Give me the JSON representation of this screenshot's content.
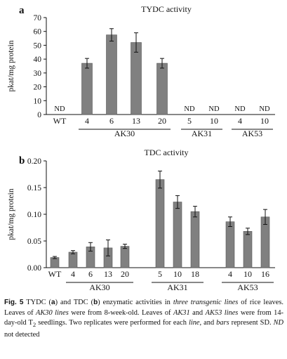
{
  "chart_data": [
    {
      "panel_label": "a",
      "type": "bar",
      "title": "TYDC activity",
      "ylabel": "pkat/mg protein",
      "ylim": [
        0,
        70
      ],
      "yticks": [
        "0",
        "10",
        "20",
        "30",
        "40",
        "50",
        "60",
        "70"
      ],
      "categories": [
        "WT",
        "4",
        "6",
        "13",
        "20",
        "5",
        "10",
        "4",
        "10"
      ],
      "values": [
        0,
        37,
        57.5,
        52,
        37,
        0,
        0,
        0,
        0
      ],
      "errors": [
        0,
        3.5,
        4.5,
        7,
        3.5,
        0,
        0,
        0,
        0
      ],
      "bar_labels": [
        "ND",
        "",
        "",
        "",
        "",
        "ND",
        "ND",
        "ND",
        "ND"
      ],
      "groups": [
        {
          "label": "AK30",
          "start": 1,
          "end": 4
        },
        {
          "label": "AK31",
          "start": 5,
          "end": 6
        },
        {
          "label": "AK53",
          "start": 7,
          "end": 8
        }
      ]
    },
    {
      "panel_label": "b",
      "type": "bar",
      "title": "TDC activity",
      "ylabel": "pkat/mg protein",
      "ylim": [
        0,
        0.2
      ],
      "yticks": [
        "0.00",
        "0.05",
        "0.10",
        "0.15",
        "0.20"
      ],
      "categories": [
        "WT",
        "4",
        "6",
        "13",
        "20",
        "5",
        "10",
        "18",
        "4",
        "10",
        "16"
      ],
      "values": [
        0.019,
        0.029,
        0.039,
        0.037,
        0.04,
        0.165,
        0.123,
        0.105,
        0.086,
        0.068,
        0.095
      ],
      "errors": [
        0.002,
        0.003,
        0.008,
        0.015,
        0.004,
        0.016,
        0.012,
        0.01,
        0.009,
        0.006,
        0.014
      ],
      "bar_labels": [
        "",
        "",
        "",
        "",
        "",
        "",
        "",
        "",
        "",
        "",
        ""
      ],
      "groups": [
        {
          "label": "AK30",
          "start": 1,
          "end": 4
        },
        {
          "label": "AK31",
          "start": 5,
          "end": 7
        },
        {
          "label": "AK53",
          "start": 8,
          "end": 10
        }
      ]
    }
  ],
  "caption": {
    "fig_label": "Fig. 5",
    "parts": [
      {
        "t": " TYDC ("
      },
      {
        "t": "a",
        "b": true
      },
      {
        "t": ") and TDC ("
      },
      {
        "t": "b",
        "b": true
      },
      {
        "t": ") enzymatic activities in "
      },
      {
        "t": "three transgenic lines",
        "i": true
      },
      {
        "t": " of rice leaves. Leaves of "
      },
      {
        "t": "AK30 lines",
        "i": true
      },
      {
        "t": " were from 8-week-old. Leaves of "
      },
      {
        "t": "AK31",
        "i": true
      },
      {
        "t": " and "
      },
      {
        "t": "AK53 lines",
        "i": true
      },
      {
        "t": " were from 14-day-old T"
      },
      {
        "t": "2",
        "sub": true
      },
      {
        "t": " seedlings. Two replicates were performed for each "
      },
      {
        "t": "line",
        "i": true
      },
      {
        "t": ", and "
      },
      {
        "t": "bars",
        "i": true
      },
      {
        "t": " represent SD. "
      },
      {
        "t": "ND",
        "i": true
      },
      {
        "t": " not detected"
      }
    ]
  }
}
